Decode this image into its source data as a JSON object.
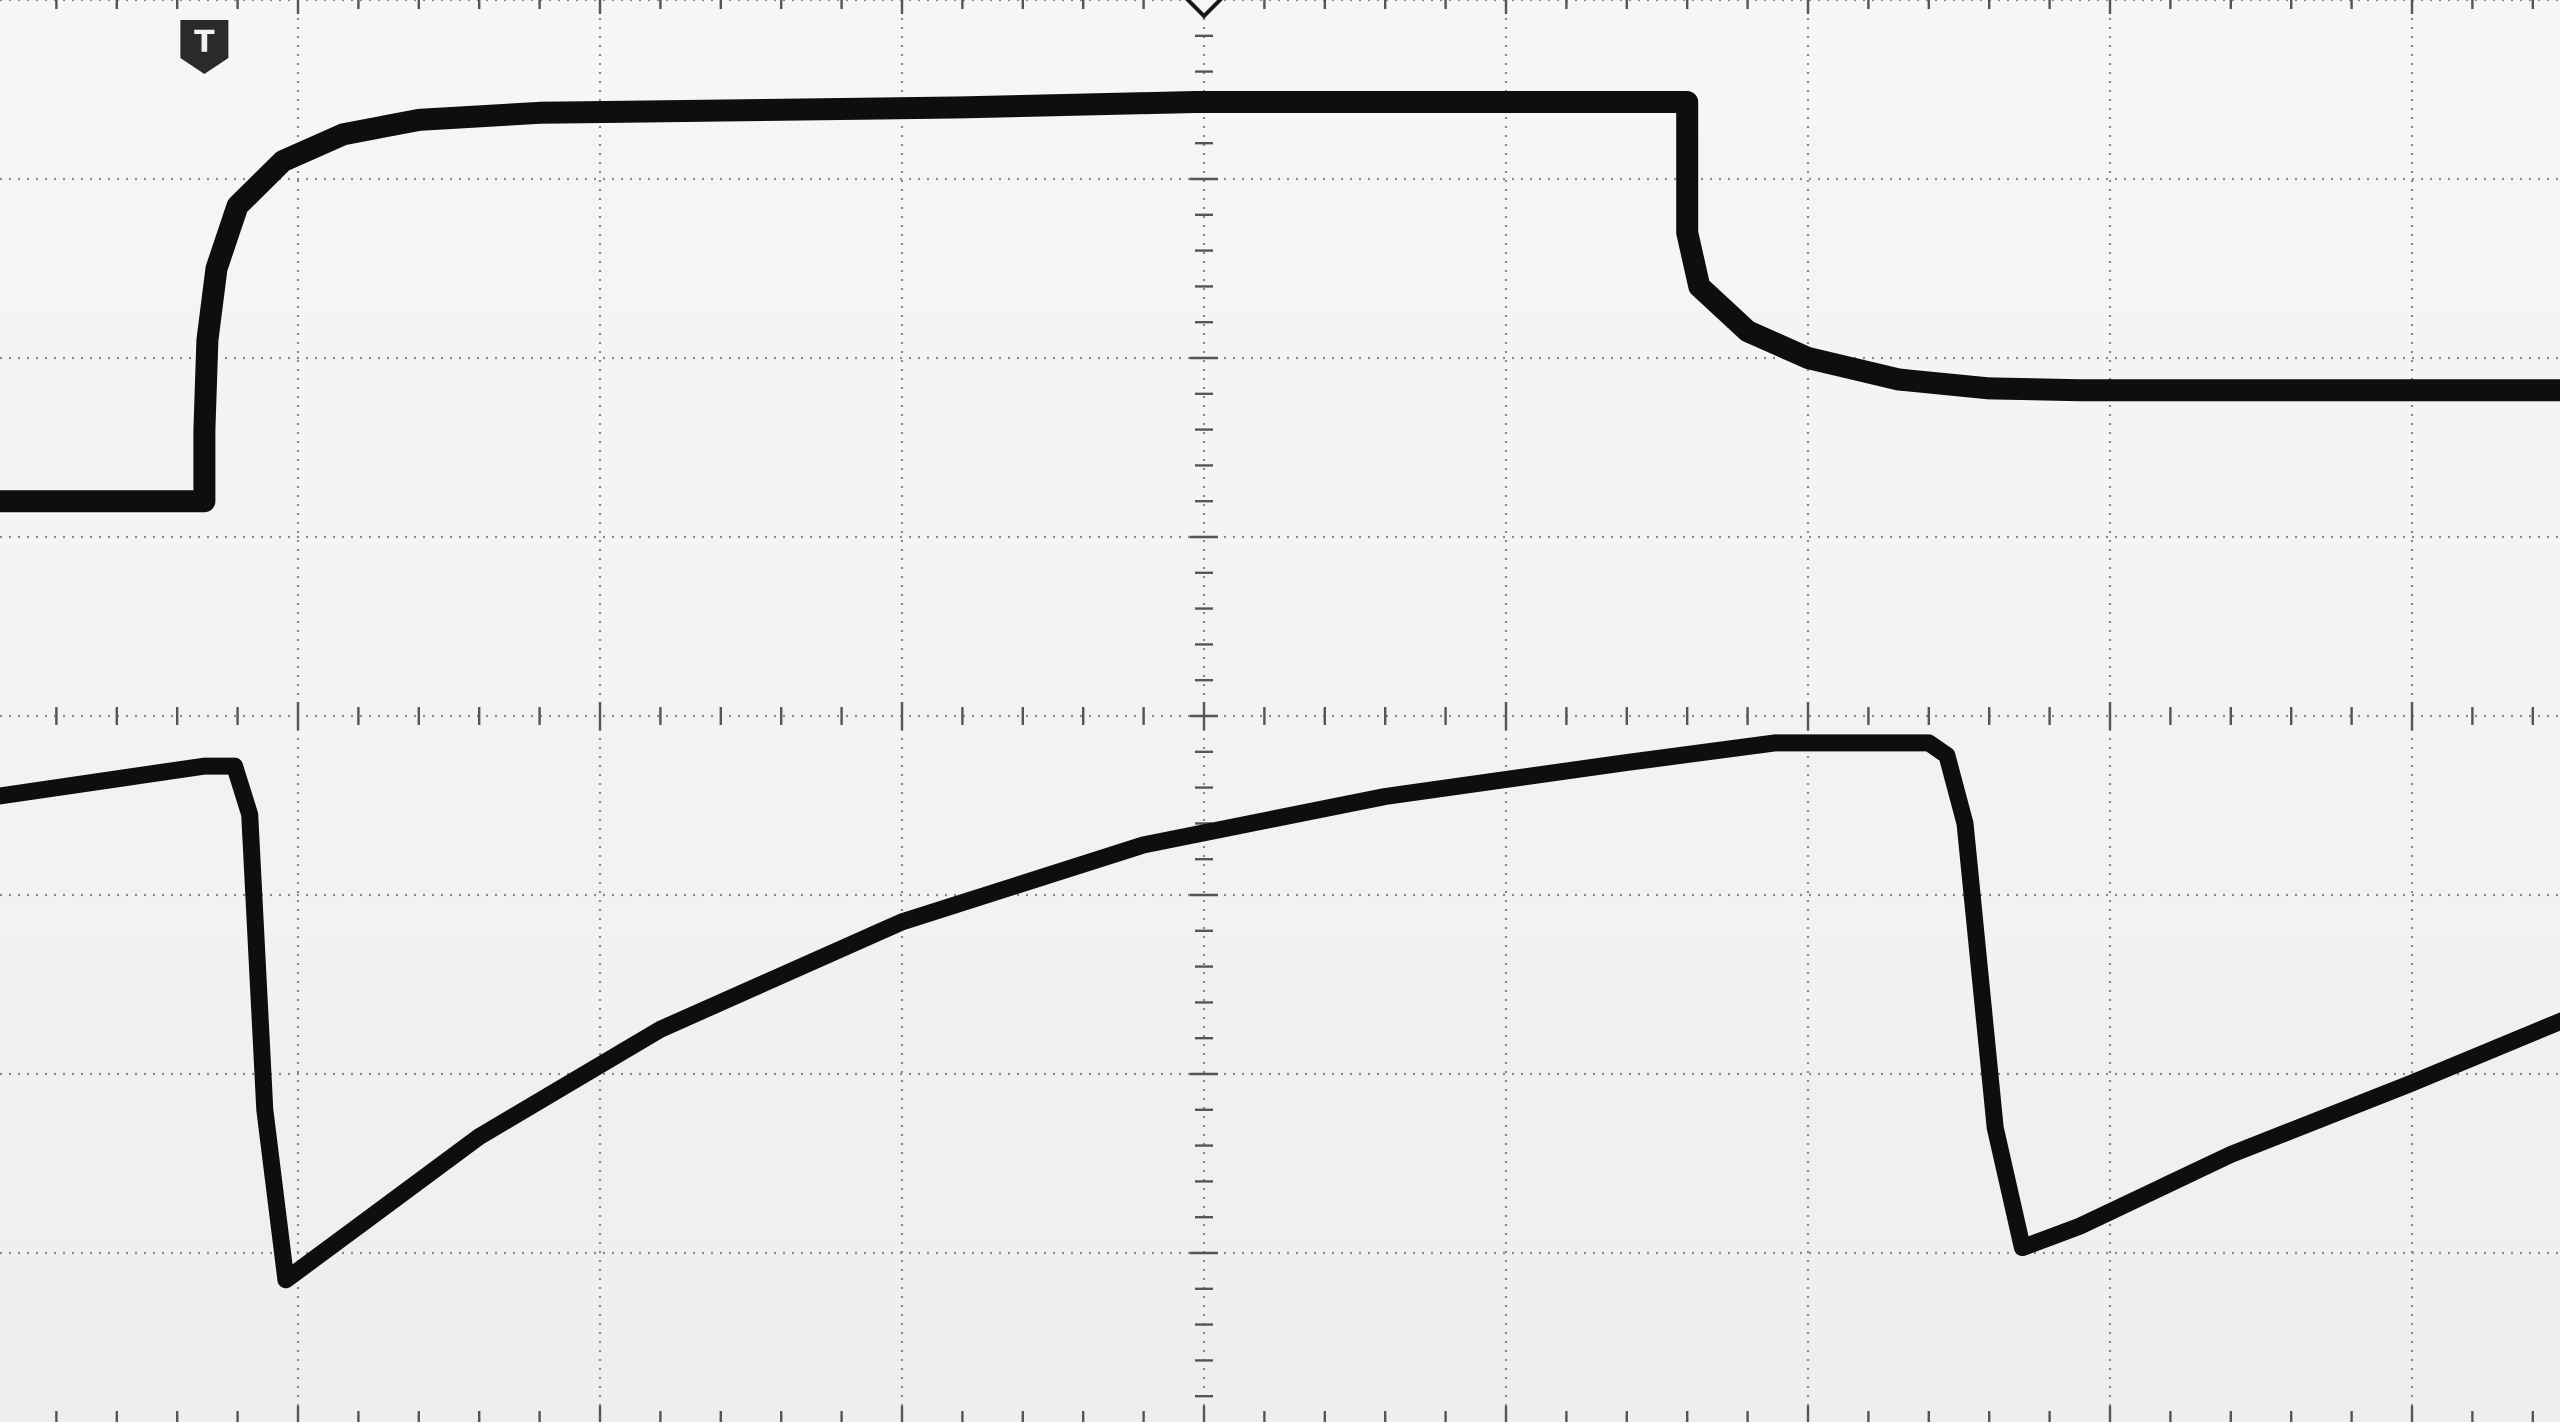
{
  "colors": {
    "background": "#f3f3f1",
    "grid": "#8a8a8a",
    "trace": "#0e0e0e"
  },
  "icons": {
    "trigger_marker": "trigger-marker-icon",
    "trigger_marker_label": "T",
    "time_reference": "time-reference-diamond-icon"
  },
  "chart_data": {
    "type": "line",
    "grid": true,
    "divisions": {
      "x": 8.5,
      "y": 8
    },
    "xlim": [
      0,
      8.5
    ],
    "ylim": [
      -4,
      4
    ],
    "xlabel": "",
    "ylabel": "",
    "trigger_x": 0.69,
    "series": [
      {
        "points": [
          [
            0,
            1.2
          ],
          [
            0.69,
            1.2
          ],
          [
            0.69,
            1.6
          ],
          [
            0.7,
            2.1
          ],
          [
            0.73,
            2.5
          ],
          [
            0.8,
            2.85
          ],
          [
            0.95,
            3.1
          ],
          [
            1.15,
            3.25
          ],
          [
            1.4,
            3.33
          ],
          [
            1.8,
            3.37
          ],
          [
            3.2,
            3.4
          ],
          [
            3.97,
            3.43
          ],
          [
            5.6,
            3.43
          ],
          [
            5.6,
            2.7
          ],
          [
            5.64,
            2.4
          ],
          [
            5.8,
            2.15
          ],
          [
            6.0,
            2.0
          ],
          [
            6.3,
            1.88
          ],
          [
            6.6,
            1.83
          ],
          [
            6.9,
            1.82
          ],
          [
            8.5,
            1.82
          ]
        ]
      },
      {
        "points": [
          [
            0,
            -0.45
          ],
          [
            0.69,
            -0.28
          ],
          [
            0.79,
            -0.28
          ],
          [
            0.84,
            -0.55
          ],
          [
            0.89,
            -2.2
          ],
          [
            0.96,
            -3.15
          ],
          [
            1.2,
            -2.85
          ],
          [
            1.6,
            -2.35
          ],
          [
            2.2,
            -1.75
          ],
          [
            3.0,
            -1.15
          ],
          [
            3.8,
            -0.72
          ],
          [
            4.6,
            -0.45
          ],
          [
            5.4,
            -0.26
          ],
          [
            5.89,
            -0.15
          ],
          [
            6.4,
            -0.15
          ],
          [
            6.46,
            -0.22
          ],
          [
            6.52,
            -0.6
          ],
          [
            6.62,
            -2.3
          ],
          [
            6.71,
            -2.97
          ],
          [
            6.9,
            -2.85
          ],
          [
            7.4,
            -2.45
          ],
          [
            8.0,
            -2.05
          ],
          [
            8.5,
            -1.7
          ]
        ]
      }
    ]
  }
}
